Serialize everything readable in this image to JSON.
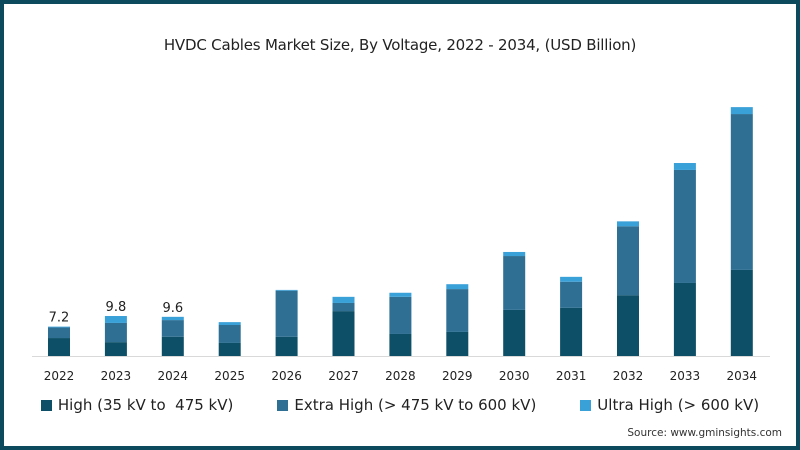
{
  "chart_data": {
    "type": "bar",
    "stacked": true,
    "title": "HVDC Cables Market Size, By Voltage, 2022 - 2034, (USD Billion)",
    "xlabel": "",
    "ylabel": "",
    "ylim": [
      0,
      65
    ],
    "grid": false,
    "legend_position": "bottom",
    "categories": [
      "2022",
      "2023",
      "2024",
      "2025",
      "2026",
      "2027",
      "2028",
      "2029",
      "2030",
      "2031",
      "2032",
      "2033",
      "2034"
    ],
    "series": [
      {
        "name": "High (35 kV to  475 kV)",
        "color": "#0d4f66",
        "values": [
          4.4,
          3.4,
          4.7,
          3.2,
          4.7,
          11.0,
          5.4,
          5.9,
          11.3,
          11.8,
          14.9,
          17.9,
          21.1
        ]
      },
      {
        "name": "Extra High (> 475 kV to 600 kV)",
        "color": "#2e6f93",
        "values": [
          2.6,
          4.7,
          4.1,
          4.4,
          11.3,
          2.0,
          9.1,
          10.5,
          13.2,
          6.4,
          16.9,
          27.7,
          38.2
        ]
      },
      {
        "name": "Ultra High (> 600 kV)",
        "color": "#3aa0d8",
        "values": [
          0.2,
          1.7,
          0.8,
          0.7,
          0.2,
          1.5,
          1.0,
          1.2,
          1.0,
          1.2,
          1.2,
          1.7,
          1.7
        ]
      }
    ],
    "data_labels": [
      {
        "category": "2022",
        "text": "7.2"
      },
      {
        "category": "2023",
        "text": "9.8"
      },
      {
        "category": "2024",
        "text": "9.6"
      }
    ],
    "source": "Source: www.gminsights.com"
  },
  "colors": {
    "frame_border": "#0e4a5e",
    "axis_line": "#d9d9d9"
  }
}
